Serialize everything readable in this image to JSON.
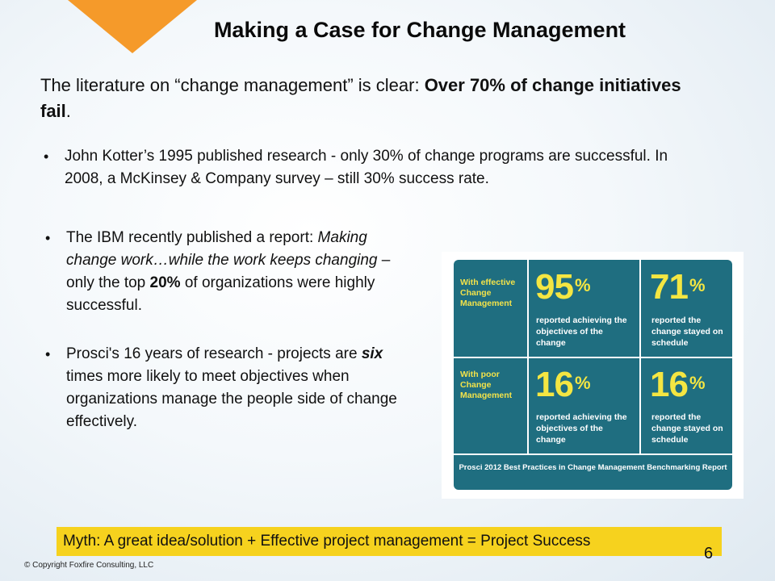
{
  "slide": {
    "title": "Making a Case for Change Management",
    "intro": {
      "part1": "The literature on “change management” is clear:  ",
      "bold": "Over 70% of change initiatives fail",
      "part2": "."
    },
    "bullets": {
      "kotter": "John Kotter’s 1995 published research - only 30% of change programs are successful. In 2008, a McKinsey & Company survey – still 30% success rate.",
      "ibm": {
        "t1": "The IBM recently published a report: ",
        "italic": "Making change work…while the work keeps changing",
        "t2": " – only the top ",
        "bold": "20%",
        "t3": " of organizations were highly successful."
      },
      "prosci": {
        "t1": "Prosci's 16 years of research - projects are ",
        "bi": "six",
        "t2": " times more likely to meet objectives when organizations manage the people side of change effectively."
      },
      "bullet_char": "•"
    },
    "infographic": {
      "row1_label": "With effective Change Management",
      "row2_label": "With poor Change Management",
      "cells": [
        {
          "value": "95",
          "unit": "%",
          "desc": "reported achieving the objectives of the change"
        },
        {
          "value": "71",
          "unit": "%",
          "desc": "reported the change stayed on schedule"
        },
        {
          "value": "16",
          "unit": "%",
          "desc": "reported achieving the objectives of the change"
        },
        {
          "value": "16",
          "unit": "%",
          "desc": "reported the change stayed on schedule"
        }
      ],
      "footer": "Prosci 2012 Best Practices in Change Management Benchmarking Report",
      "colors": {
        "panel": "#1f6e80",
        "highlight": "#f4e642"
      }
    },
    "myth": "Myth:  A great idea/solution + Effective project management = Project Success",
    "page_number": "6",
    "copyright": "© Copyright Foxfire Consulting, LLC",
    "colors": {
      "accent_triangle": "#f59a2a",
      "myth_bar": "#f6d21e"
    }
  }
}
